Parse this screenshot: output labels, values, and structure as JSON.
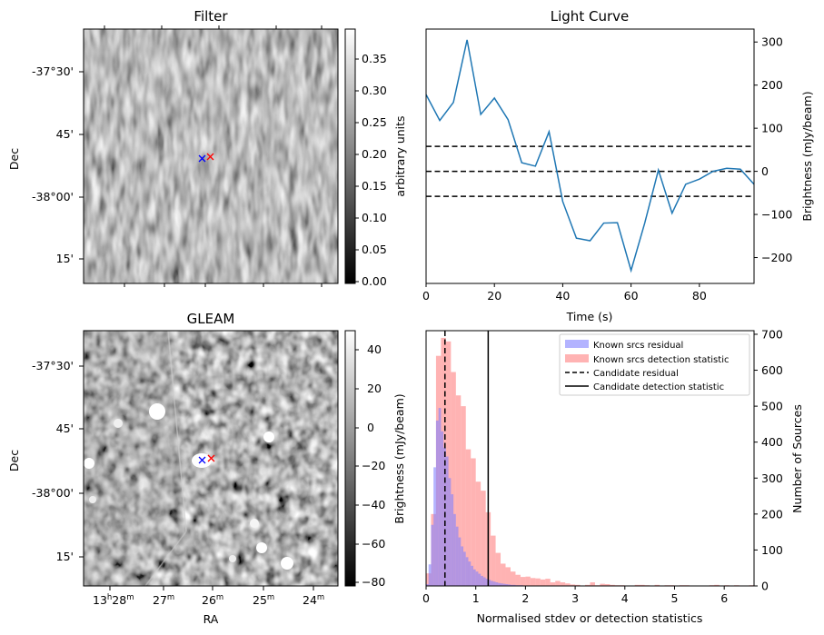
{
  "panels": {
    "filter": {
      "title": "Filter",
      "ylabel": "Dec",
      "dec_ticks": [
        "-37°30'",
        "45'",
        "-38°00'",
        "15'"
      ],
      "colorbar": {
        "label": "arbitrary units",
        "ticks": [
          "0.00",
          "0.05",
          "0.10",
          "0.15",
          "0.20",
          "0.25",
          "0.30",
          "0.35"
        ],
        "range": [
          0,
          0.39
        ]
      },
      "markers": [
        "blue-x",
        "red-x"
      ]
    },
    "gleam": {
      "title": "GLEAM",
      "ylabel": "Dec",
      "xlabel": "RA",
      "dec_ticks": [
        "-37°30'",
        "45'",
        "-38°00'",
        "15'"
      ],
      "ra_ticks": [
        {
          "h": "13",
          "hsup": "h",
          "m": "28",
          "msup": "m"
        },
        {
          "h": "",
          "hsup": "",
          "m": "27",
          "msup": "m"
        },
        {
          "h": "",
          "hsup": "",
          "m": "26",
          "msup": "m"
        },
        {
          "h": "",
          "hsup": "",
          "m": "25",
          "msup": "m"
        },
        {
          "h": "",
          "hsup": "",
          "m": "24",
          "msup": "m"
        }
      ],
      "colorbar": {
        "label": "Brightness (mJy/beam)",
        "ticks": [
          "−80",
          "−60",
          "−40",
          "−20",
          "0",
          "20",
          "40"
        ],
        "range": [
          -82,
          49
        ]
      },
      "markers": [
        "blue-x",
        "red-x"
      ]
    }
  },
  "chart_data": [
    {
      "type": "line",
      "title": "Light Curve",
      "xlabel": "Time (s)",
      "ylabel": "Brightness (mJy/beam)",
      "xlim": [
        0,
        96
      ],
      "ylim": [
        -260,
        330
      ],
      "xticks": [
        "0",
        "20",
        "40",
        "60",
        "80"
      ],
      "yticks": [
        "−200",
        "−100",
        "0",
        "100",
        "200",
        "300"
      ],
      "series": [
        {
          "color": "#1f77b4",
          "x": [
            0,
            4,
            8,
            12,
            16,
            20,
            24,
            28,
            32,
            36,
            40,
            44,
            48,
            52,
            56,
            60,
            64,
            68,
            72,
            76,
            80,
            84,
            88,
            92,
            96
          ],
          "y": [
            178,
            118,
            160,
            305,
            132,
            170,
            120,
            20,
            12,
            92,
            -70,
            -155,
            -161,
            -120,
            -119,
            -230,
            -120,
            3,
            -97,
            -30,
            -18,
            0,
            7,
            5,
            -30
          ]
        }
      ],
      "hlines": [
        {
          "y": 58,
          "style": "dashed",
          "color": "#000000"
        },
        {
          "y": 0,
          "style": "dashed",
          "color": "#000000"
        },
        {
          "y": -58,
          "style": "dashed",
          "color": "#000000"
        }
      ]
    },
    {
      "type": "histogram",
      "xlabel": "Normalised stdev or detection statistics",
      "ylabel": "Number of Sources",
      "xlim": [
        0,
        6.6
      ],
      "ylim": [
        0,
        710
      ],
      "xticks": [
        "0",
        "1",
        "2",
        "3",
        "4",
        "5",
        "6"
      ],
      "yticks": [
        "0",
        "100",
        "200",
        "300",
        "400",
        "500",
        "600",
        "700"
      ],
      "legend_position": "top-right",
      "series": [
        {
          "name": "Known srcs residual",
          "color": "#8080ff",
          "bin_width": 0.05,
          "x_start": 0,
          "values": [
            5,
            60,
            170,
            330,
            460,
            495,
            430,
            385,
            360,
            300,
            255,
            200,
            165,
            135,
            110,
            95,
            80,
            68,
            56,
            46,
            40,
            34,
            28,
            24,
            20,
            17,
            14,
            12,
            10,
            8,
            7,
            6,
            5,
            4,
            3,
            3,
            2,
            2,
            2,
            1,
            1,
            1,
            1,
            1
          ]
        },
        {
          "name": "Known srcs detection statistic",
          "color": "#ff8080",
          "bin_width": 0.1,
          "x_start": 0,
          "values": [
            35,
            200,
            640,
            690,
            680,
            595,
            530,
            500,
            380,
            355,
            290,
            265,
            205,
            140,
            92,
            62,
            52,
            40,
            31,
            25,
            26,
            22,
            21,
            18,
            20,
            10,
            14,
            10,
            7,
            4,
            3,
            1,
            3,
            10,
            2,
            6,
            5,
            3,
            2,
            2,
            1,
            1,
            3,
            3,
            2,
            1,
            3,
            1,
            2,
            2,
            1,
            2,
            2,
            1,
            1,
            1,
            1,
            2,
            3,
            1,
            2,
            1,
            2,
            1,
            1,
            2
          ]
        }
      ],
      "vlines": [
        {
          "name": "Candidate residual",
          "x": 0.38,
          "style": "dashed",
          "color": "#000000"
        },
        {
          "name": "Candidate detection statistic",
          "x": 1.25,
          "style": "solid",
          "color": "#000000"
        }
      ]
    }
  ]
}
